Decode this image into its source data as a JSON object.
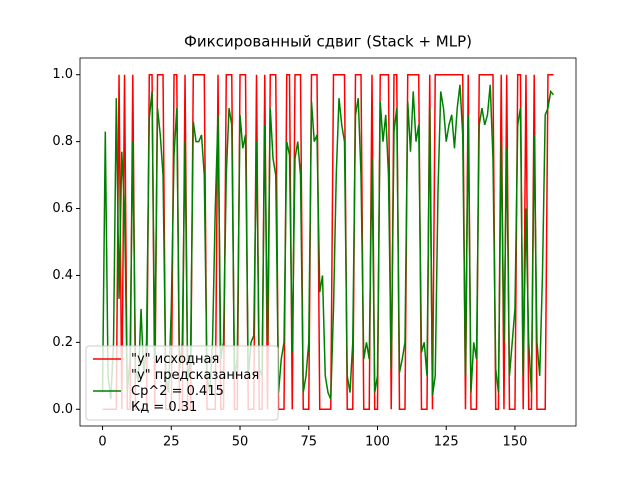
{
  "chart_data": {
    "type": "line",
    "title": "Фиксированный сдвиг (Stack + MLP)",
    "x": [
      0,
      1,
      2,
      3,
      4,
      5,
      6,
      7,
      8,
      9,
      10,
      11,
      12,
      13,
      14,
      15,
      16,
      17,
      18,
      19,
      20,
      21,
      22,
      23,
      24,
      25,
      26,
      27,
      28,
      29,
      30,
      31,
      32,
      33,
      34,
      35,
      36,
      37,
      38,
      39,
      40,
      41,
      42,
      43,
      44,
      45,
      46,
      47,
      48,
      49,
      50,
      51,
      52,
      53,
      54,
      55,
      56,
      57,
      58,
      59,
      60,
      61,
      62,
      63,
      64,
      65,
      66,
      67,
      68,
      69,
      70,
      71,
      72,
      73,
      74,
      75,
      76,
      77,
      78,
      79,
      80,
      81,
      82,
      83,
      84,
      85,
      86,
      87,
      88,
      89,
      90,
      91,
      92,
      93,
      94,
      95,
      96,
      97,
      98,
      99,
      100,
      101,
      102,
      103,
      104,
      105,
      106,
      107,
      108,
      109,
      110,
      111,
      112,
      113,
      114,
      115,
      116,
      117,
      118,
      119,
      120,
      121,
      122,
      123,
      124,
      125,
      126,
      127,
      128,
      129,
      130,
      131,
      132,
      133,
      134,
      135,
      136,
      137,
      138,
      139,
      140,
      141,
      142,
      143,
      144,
      145,
      146,
      147,
      148,
      149,
      150,
      151,
      152,
      153,
      154,
      155,
      156,
      157,
      158,
      159,
      160,
      161,
      162,
      163,
      164
    ],
    "series": [
      {
        "name": "\"y\" исходная",
        "color": "#ff0000",
        "values": [
          0,
          0,
          0,
          0,
          0,
          0,
          1,
          0,
          1,
          0,
          0,
          1,
          0,
          0,
          0,
          0,
          0,
          1,
          1,
          0,
          1,
          1,
          1,
          0,
          0,
          0,
          1,
          1,
          0,
          0,
          1,
          0,
          0,
          1,
          1,
          1,
          1,
          1,
          0,
          0,
          0,
          0,
          1,
          0,
          0,
          1,
          1,
          1,
          0,
          0,
          1,
          1,
          1,
          0,
          0,
          0,
          1,
          0,
          0,
          1,
          0,
          1,
          1,
          1,
          0,
          0,
          0,
          1,
          1,
          0,
          1,
          1,
          1,
          0,
          0,
          0,
          1,
          1,
          1,
          0,
          0,
          0,
          0,
          0,
          1,
          1,
          1,
          1,
          1,
          0,
          0,
          0,
          1,
          1,
          1,
          0,
          0,
          0,
          1,
          0,
          0,
          1,
          1,
          1,
          1,
          0,
          1,
          1,
          0,
          0,
          0,
          1,
          1,
          1,
          1,
          1,
          0,
          0,
          0,
          1,
          0,
          1,
          1,
          1,
          1,
          1,
          1,
          1,
          1,
          1,
          1,
          1,
          0,
          1,
          0,
          0,
          0,
          1,
          1,
          1,
          1,
          1,
          1,
          0,
          0,
          1,
          0,
          1,
          0,
          0,
          0,
          1,
          1,
          0,
          1,
          0,
          0,
          1,
          0,
          0,
          0,
          0,
          1,
          1,
          1
        ]
      },
      {
        "name": "\"y\" предсказанная\nСр^2 = 0.415\nКд = 0.31",
        "color": "#008000",
        "values": [
          0.05,
          0.83,
          0.1,
          0.03,
          0.2,
          0.93,
          0.33,
          0.77,
          0.6,
          0.05,
          0.15,
          0.8,
          0.12,
          0.08,
          0.3,
          0.1,
          0.2,
          0.87,
          0.95,
          0.15,
          0.9,
          0.82,
          0.7,
          0.1,
          0.05,
          0.3,
          0.76,
          0.9,
          0.12,
          0.2,
          0.8,
          0.08,
          0.15,
          0.86,
          0.8,
          0.8,
          0.82,
          0.7,
          0.1,
          0.05,
          0.2,
          0.6,
          0.88,
          0.15,
          0.2,
          0.7,
          0.9,
          0.85,
          0.1,
          0.15,
          0.88,
          0.78,
          0.82,
          0.1,
          0.2,
          0.22,
          0.8,
          0.12,
          0.1,
          0.85,
          0.2,
          0.9,
          0.75,
          0.7,
          0.05,
          0.15,
          0.2,
          0.8,
          0.76,
          0.17,
          0.75,
          0.8,
          0.7,
          0.05,
          0.1,
          0.2,
          0.92,
          0.8,
          0.82,
          0.35,
          0.4,
          0.1,
          0.05,
          0.03,
          0.3,
          0.7,
          0.93,
          0.85,
          0.8,
          0.1,
          0.05,
          0.2,
          0.88,
          0.93,
          0.7,
          0.15,
          0.2,
          0.15,
          0.75,
          0.05,
          0.1,
          0.92,
          0.8,
          0.88,
          0.7,
          0.12,
          0.83,
          0.9,
          0.11,
          0.15,
          0.2,
          0.92,
          0.77,
          0.95,
          0.8,
          0.85,
          0.17,
          0.2,
          0.1,
          0.9,
          0.04,
          0.1,
          0.65,
          0.95,
          0.9,
          0.8,
          0.85,
          0.88,
          0.78,
          0.9,
          0.97,
          0.82,
          0.1,
          0.88,
          0.05,
          0.2,
          0.15,
          0.85,
          0.9,
          0.85,
          0.88,
          0.97,
          0.75,
          0.12,
          0.05,
          0.8,
          0.2,
          0.78,
          0.1,
          0.2,
          0.3,
          0.85,
          0.9,
          0.1,
          0.6,
          0.2,
          0.05,
          0.82,
          0.2,
          0.1,
          0.4,
          0.88,
          0.9,
          0.95,
          0.94
        ]
      }
    ],
    "xlim": [
      -8.2,
      172.2
    ],
    "xticks": [
      0,
      25,
      50,
      75,
      100,
      125,
      150
    ],
    "ylim": [
      -0.05,
      1.05
    ],
    "yticks": [
      {
        "value": 0,
        "label": "0.0"
      },
      {
        "value": 0.2,
        "label": "0.2"
      },
      {
        "value": 0.4,
        "label": "0.4"
      },
      {
        "value": 0.6,
        "label": "0.6"
      },
      {
        "value": 0.8,
        "label": "0.8"
      },
      {
        "value": 1,
        "label": "1.0"
      }
    ],
    "legend": "lower left"
  }
}
